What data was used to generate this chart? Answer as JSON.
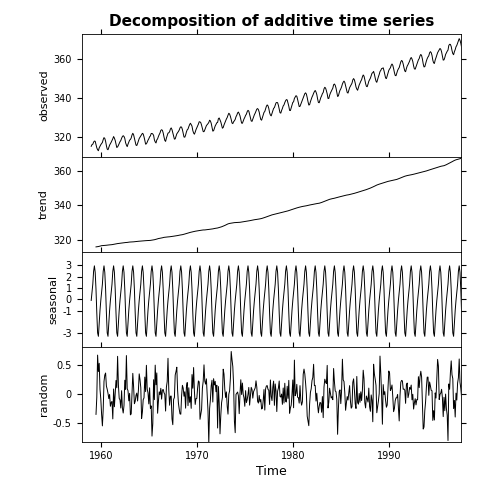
{
  "title": "Decomposition of additive time series",
  "xlabel": "Time",
  "panel_labels": [
    "observed",
    "trend",
    "seasonal",
    "random"
  ],
  "observed_ylim": [
    310,
    373
  ],
  "observed_yticks": [
    320,
    340,
    360
  ],
  "trend_ylim": [
    313,
    368
  ],
  "trend_yticks": [
    320,
    340,
    360
  ],
  "seasonal_ylim": [
    -4.2,
    4.2
  ],
  "seasonal_yticks": [
    -3,
    -1,
    0,
    1,
    2,
    3
  ],
  "random_ylim": [
    -0.82,
    0.82
  ],
  "random_yticks": [
    -0.5,
    0.0,
    0.5
  ],
  "xticks": [
    1960,
    1970,
    1980,
    1990
  ],
  "xlim": [
    1958.0,
    1997.5
  ],
  "line_color": "black",
  "line_width": 0.7,
  "bg_color": "white",
  "border_color": "black",
  "title_fontsize": 11,
  "label_fontsize": 8,
  "tick_fontsize": 7
}
